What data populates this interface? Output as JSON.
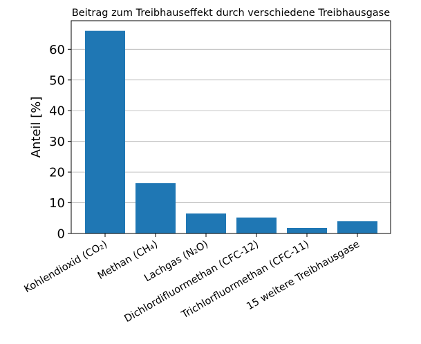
{
  "chart_data": {
    "type": "bar",
    "title": "Beitrag zum Treibhauseffekt durch verschiedene Treibhausgase",
    "xlabel": "",
    "ylabel": "Anteil [%]",
    "categories": [
      "Kohlendioxid (CO₂)",
      "Methan (CH₄)",
      "Lachgas (N₂O)",
      "Dichlordifluormethan (CFC-12)",
      "Trichlorfluormethan (CFC-11)",
      "15 weitere Treibhausgase"
    ],
    "values": [
      66,
      16.4,
      6.5,
      5.2,
      1.8,
      4.0
    ],
    "ylim": [
      0,
      69.3
    ],
    "yticks": [
      0,
      10,
      20,
      30,
      40,
      50,
      60
    ],
    "grid": "horizontal",
    "bar_color": "#1f77b4"
  }
}
